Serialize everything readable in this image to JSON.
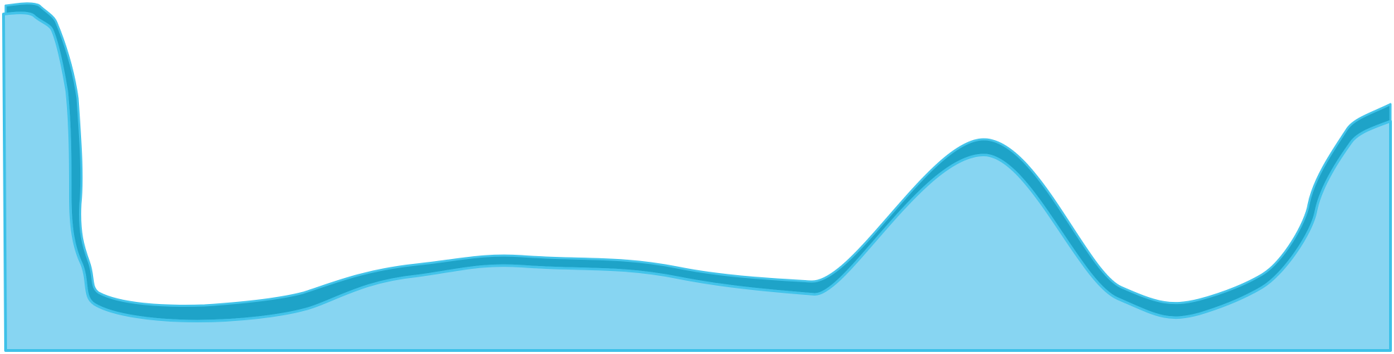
{
  "colors": {
    "background": "#ffffff",
    "fill_light": "#87d5f2",
    "outline": "#3ec1e8",
    "band_dark": "#1ea3c8",
    "band_edge": "#42c3ea"
  }
}
